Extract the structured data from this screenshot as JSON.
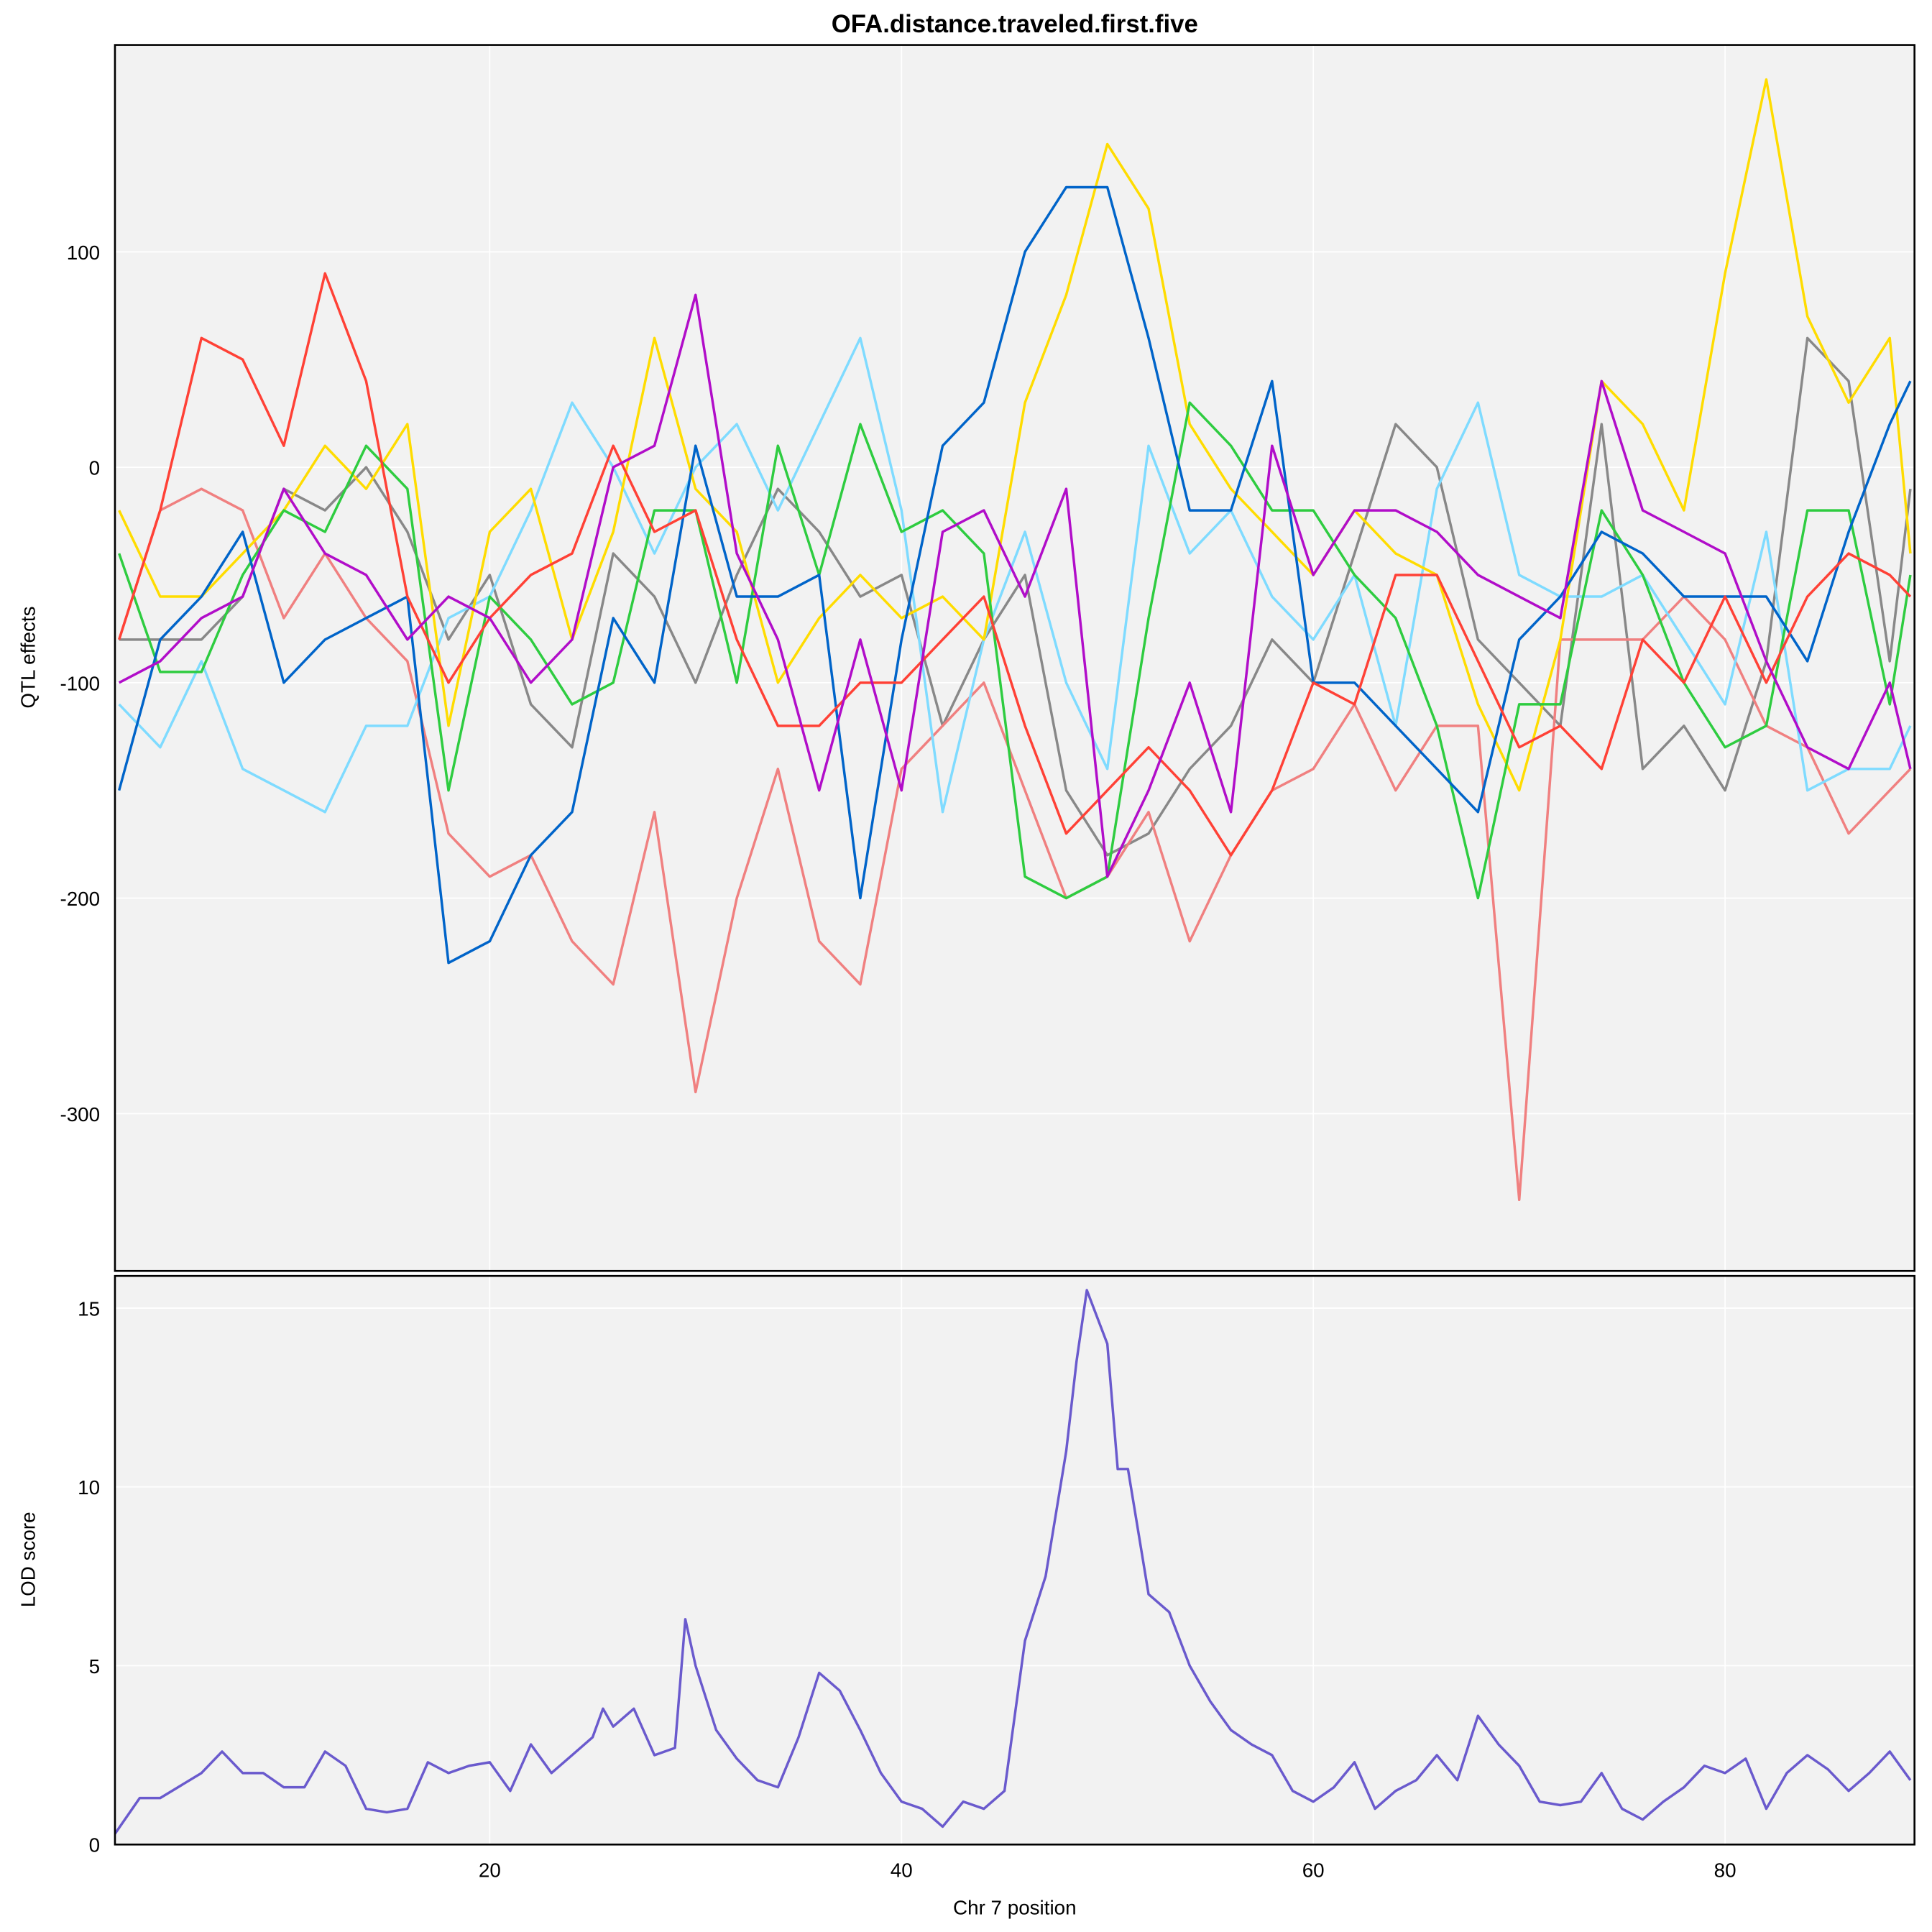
{
  "chart_data": [
    {
      "type": "line",
      "title": "OFA.distance.traveled.first.five",
      "ylabel": "QTL effects",
      "xlabel": "",
      "xlim": [
        1.8,
        89.2
      ],
      "ylim": [
        -373,
        196
      ],
      "yticks": [
        100,
        0,
        -100,
        -200,
        -300
      ],
      "xticks": [
        20,
        40,
        60,
        80
      ],
      "grid": true,
      "background": "#F2F2F2",
      "x": [
        2,
        4,
        6,
        8,
        10,
        12,
        14,
        16,
        18,
        20,
        22,
        24,
        26,
        28,
        30,
        32,
        34,
        36,
        38,
        40,
        42,
        44,
        46,
        48,
        50,
        52,
        54,
        56,
        58,
        60,
        62,
        64,
        66,
        68,
        70,
        72,
        74,
        76,
        78,
        80,
        82,
        84,
        86,
        88,
        89
      ],
      "series": [
        {
          "color": "#888888",
          "values": [
            -80,
            -80,
            -80,
            -60,
            -10,
            -20,
            0,
            -30,
            -80,
            -50,
            -110,
            -130,
            -40,
            -60,
            -100,
            -50,
            -10,
            -30,
            -60,
            -50,
            -120,
            -80,
            -50,
            -150,
            -180,
            -170,
            -140,
            -120,
            -80,
            -100,
            -40,
            20,
            0,
            -80,
            -100,
            -120,
            20,
            -140,
            -120,
            -150,
            -90,
            60,
            40,
            -90,
            -10
          ]
        },
        {
          "color": "#F08080",
          "values": [
            -80,
            -20,
            -10,
            -20,
            -70,
            -40,
            -70,
            -90,
            -170,
            -190,
            -180,
            -220,
            -240,
            -160,
            -290,
            -200,
            -140,
            -220,
            -240,
            -140,
            -120,
            -100,
            -150,
            -200,
            -190,
            -160,
            -220,
            -180,
            -150,
            -140,
            -110,
            -150,
            -120,
            -120,
            -340,
            -80,
            -80,
            -80,
            -60,
            -80,
            -120,
            -130,
            -170,
            -150,
            -140
          ]
        },
        {
          "color": "#7FDBFF",
          "values": [
            -110,
            -130,
            -90,
            -140,
            -150,
            -160,
            -120,
            -120,
            -70,
            -60,
            -20,
            30,
            0,
            -40,
            0,
            20,
            -20,
            20,
            60,
            -20,
            -160,
            -80,
            -30,
            -100,
            -140,
            10,
            -40,
            -20,
            -60,
            -80,
            -50,
            -120,
            -10,
            30,
            -50,
            -60,
            -60,
            -50,
            -80,
            -110,
            -30,
            -150,
            -140,
            -140,
            -120
          ]
        },
        {
          "color": "#FFDC00",
          "values": [
            -20,
            -60,
            -60,
            -40,
            -20,
            10,
            -10,
            20,
            -120,
            -30,
            -10,
            -80,
            -30,
            60,
            -10,
            -30,
            -100,
            -70,
            -50,
            -70,
            -60,
            -80,
            30,
            80,
            150,
            120,
            20,
            -10,
            -30,
            -50,
            -20,
            -40,
            -50,
            -110,
            -150,
            -80,
            40,
            20,
            -20,
            90,
            180,
            70,
            30,
            60,
            -40
          ]
        },
        {
          "color": "#2ECC40",
          "values": [
            -40,
            -95,
            -95,
            -50,
            -20,
            -30,
            10,
            -10,
            -150,
            -60,
            -80,
            -110,
            -100,
            -20,
            -20,
            -100,
            10,
            -50,
            20,
            -30,
            -20,
            -40,
            -190,
            -200,
            -190,
            -70,
            30,
            10,
            -20,
            -20,
            -50,
            -70,
            -120,
            -200,
            -110,
            -110,
            -20,
            -50,
            -100,
            -130,
            -120,
            -20,
            -20,
            -110,
            -50
          ]
        },
        {
          "color": "#0064C9",
          "values": [
            -150,
            -80,
            -60,
            -30,
            -100,
            -80,
            -70,
            -60,
            -230,
            -220,
            -180,
            -160,
            -70,
            -100,
            10,
            -60,
            -60,
            -50,
            -200,
            -80,
            10,
            30,
            100,
            130,
            130,
            60,
            -20,
            -20,
            40,
            -100,
            -100,
            -120,
            -140,
            -160,
            -80,
            -60,
            -30,
            -40,
            -60,
            -60,
            -60,
            -90,
            -30,
            20,
            40
          ]
        },
        {
          "color": "#FF4136",
          "values": [
            -80,
            -20,
            60,
            50,
            10,
            90,
            40,
            -60,
            -100,
            -70,
            -50,
            -40,
            10,
            -30,
            -20,
            -80,
            -120,
            -120,
            -100,
            -100,
            -80,
            -60,
            -120,
            -170,
            -150,
            -130,
            -150,
            -180,
            -150,
            -100,
            -110,
            -50,
            -50,
            -90,
            -130,
            -120,
            -140,
            -80,
            -100,
            -60,
            -100,
            -60,
            -40,
            -50,
            -60
          ]
        },
        {
          "color": "#B10DC9",
          "values": [
            -100,
            -90,
            -70,
            -60,
            -10,
            -40,
            -50,
            -80,
            -60,
            -70,
            -100,
            -80,
            0,
            10,
            80,
            -40,
            -80,
            -150,
            -80,
            -150,
            -30,
            -20,
            -60,
            -10,
            -190,
            -150,
            -100,
            -160,
            10,
            -50,
            -20,
            -20,
            -30,
            -50,
            -60,
            -70,
            40,
            -20,
            -30,
            -40,
            -90,
            -130,
            -140,
            -100,
            -140
          ]
        }
      ]
    },
    {
      "type": "line",
      "ylabel": "LOD score",
      "xlabel": "Chr 7 position",
      "xlim": [
        1.8,
        89.2
      ],
      "ylim": [
        0,
        15.9
      ],
      "yticks": [
        0,
        5,
        10,
        15
      ],
      "xticks": [
        20,
        40,
        60,
        80
      ],
      "grid": true,
      "background": "#F2F2F2",
      "color": "#6A5ACD",
      "x": [
        1.8,
        3,
        4,
        6,
        7,
        8,
        9,
        10,
        11,
        12,
        13,
        14,
        15,
        16,
        17,
        18,
        19,
        20,
        21,
        22,
        23,
        24,
        25,
        25.5,
        26,
        27,
        28,
        29,
        29.5,
        30,
        31,
        32,
        33,
        34,
        35,
        36,
        37,
        38,
        39,
        40,
        41,
        42,
        43,
        44,
        45,
        46,
        47,
        48,
        48.5,
        49,
        50,
        50.5,
        51,
        52,
        53,
        54,
        55,
        56,
        57,
        58,
        59,
        60,
        61,
        62,
        63,
        64,
        65,
        66,
        67,
        68,
        69,
        70,
        71,
        72,
        73,
        74,
        75,
        76,
        77,
        78,
        79,
        80,
        81,
        82,
        83,
        84,
        85,
        86,
        87,
        88,
        89
      ],
      "values": [
        0.3,
        1.3,
        1.3,
        2.0,
        2.6,
        2.0,
        2.0,
        1.6,
        1.6,
        2.6,
        2.2,
        1.0,
        0.9,
        1.0,
        2.3,
        2.0,
        2.2,
        2.3,
        1.5,
        2.8,
        2.0,
        2.5,
        3.0,
        3.8,
        3.3,
        3.8,
        2.5,
        2.7,
        6.3,
        5.0,
        3.2,
        2.4,
        1.8,
        1.6,
        3.0,
        4.8,
        4.3,
        3.2,
        2.0,
        1.2,
        1.0,
        0.5,
        1.2,
        1.0,
        1.5,
        5.7,
        7.5,
        11,
        13.5,
        15.5,
        14,
        10.5,
        10.5,
        7,
        6.5,
        5,
        4,
        3.2,
        2.8,
        2.5,
        1.5,
        1.2,
        1.6,
        2.3,
        1.0,
        1.5,
        1.8,
        2.5,
        1.8,
        3.6,
        2.8,
        2.2,
        1.2,
        1.1,
        1.2,
        2.0,
        1.0,
        0.7,
        1.2,
        1.6,
        2.2,
        2.0,
        2.4,
        1.0,
        2.0,
        2.5,
        2.1,
        1.5,
        2.0,
        2.6,
        1.8
      ]
    }
  ]
}
